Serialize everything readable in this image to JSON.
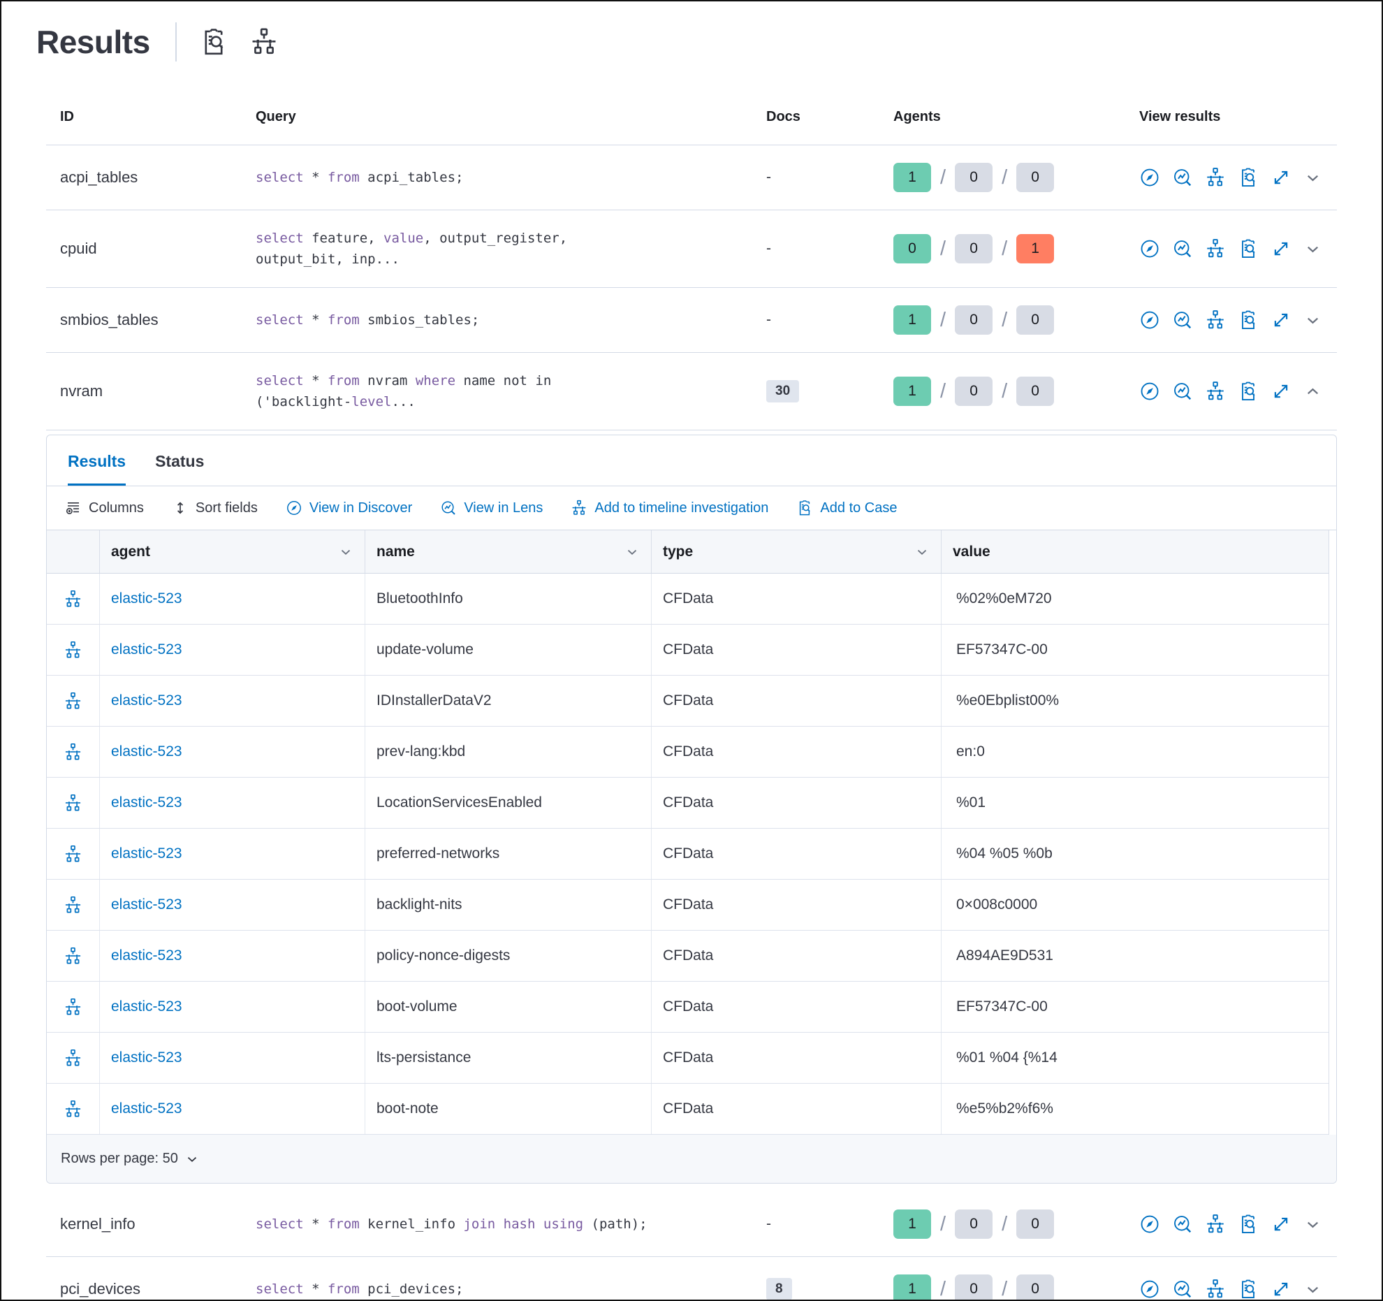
{
  "colors": {
    "primary": "#0071c2",
    "keyword_purple": "#785aa0",
    "success_badge": "#6dccb1",
    "neutral_badge": "#d8dce5",
    "danger_badge": "#ff7e62"
  },
  "header": {
    "title": "Results",
    "actions": [
      {
        "icon": "case"
      },
      {
        "icon": "timeline"
      }
    ]
  },
  "table": {
    "columns": {
      "id": "ID",
      "query": "Query",
      "docs": "Docs",
      "agents": "Agents",
      "view": "View results"
    },
    "view_actions": [
      "discover",
      "lens",
      "timeline",
      "case",
      "expand"
    ],
    "rows": [
      {
        "id": "acpi_tables",
        "docs": "-",
        "agents": {
          "success": 1,
          "pending": 0,
          "failed": 0
        },
        "expanded": false,
        "query": [
          {
            "t": "select",
            "k": true
          },
          {
            "t": " * "
          },
          {
            "t": "from",
            "k": true
          },
          {
            "t": " acpi_tables;"
          }
        ]
      },
      {
        "id": "cpuid",
        "docs": "-",
        "agents": {
          "success": 0,
          "pending": 0,
          "failed": 1
        },
        "expanded": false,
        "query": [
          {
            "t": "select",
            "k": true
          },
          {
            "t": " feature, "
          },
          {
            "t": "value",
            "k": true
          },
          {
            "t": ", output_register,"
          },
          {
            "br": true
          },
          {
            "t": "output_bit, inp..."
          }
        ]
      },
      {
        "id": "smbios_tables",
        "docs": "-",
        "agents": {
          "success": 1,
          "pending": 0,
          "failed": 0
        },
        "expanded": false,
        "query": [
          {
            "t": "select",
            "k": true
          },
          {
            "t": " * "
          },
          {
            "t": "from",
            "k": true
          },
          {
            "t": " smbios_tables;"
          }
        ]
      },
      {
        "id": "nvram",
        "docs_badge": "30",
        "agents": {
          "success": 1,
          "pending": 0,
          "failed": 0
        },
        "expanded": true,
        "query": [
          {
            "t": "select",
            "k": true
          },
          {
            "t": " * "
          },
          {
            "t": "from",
            "k": true
          },
          {
            "t": " nvram "
          },
          {
            "t": "where",
            "k": true
          },
          {
            "t": " name not in"
          },
          {
            "br": true
          },
          {
            "t": "('backlight-"
          },
          {
            "t": "level",
            "k": true
          },
          {
            "t": "..."
          }
        ]
      },
      {
        "id": "kernel_info",
        "docs": "-",
        "agents": {
          "success": 1,
          "pending": 0,
          "failed": 0
        },
        "expanded": false,
        "query": [
          {
            "t": "select",
            "k": true
          },
          {
            "t": " * "
          },
          {
            "t": "from",
            "k": true
          },
          {
            "t": " kernel_info "
          },
          {
            "t": "join",
            "k": true
          },
          {
            "t": " "
          },
          {
            "t": "hash",
            "k": true
          },
          {
            "t": " "
          },
          {
            "t": "using",
            "k": true
          },
          {
            "t": " (path);"
          }
        ]
      },
      {
        "id": "pci_devices",
        "docs_badge": "8",
        "agents": {
          "success": 1,
          "pending": 0,
          "failed": 0
        },
        "expanded": false,
        "query": [
          {
            "t": "select",
            "k": true
          },
          {
            "t": " * "
          },
          {
            "t": "from",
            "k": true
          },
          {
            "t": " pci_devices;"
          }
        ]
      }
    ]
  },
  "panel": {
    "tabs": [
      {
        "label": "Results",
        "active": true
      },
      {
        "label": "Status",
        "active": false
      }
    ],
    "toolbar": [
      {
        "label": "Columns",
        "icon": "columns",
        "style": "plain"
      },
      {
        "label": "Sort fields",
        "icon": "sort",
        "style": "plain"
      },
      {
        "label": "View in Discover",
        "icon": "discover",
        "style": "link"
      },
      {
        "label": "View in Lens",
        "icon": "lens",
        "style": "link"
      },
      {
        "label": "Add to timeline investigation",
        "icon": "timeline",
        "style": "link"
      },
      {
        "label": "Add to Case",
        "icon": "case",
        "style": "link"
      }
    ],
    "grid": {
      "columns": [
        {
          "label": "agent",
          "sortable": true
        },
        {
          "label": "name",
          "sortable": true
        },
        {
          "label": "type",
          "sortable": true
        },
        {
          "label": "value",
          "sortable": false
        }
      ],
      "rows": [
        {
          "agent": "elastic-523",
          "name": "BluetoothInfo",
          "type": "CFData",
          "value": "%02%0eM720"
        },
        {
          "agent": "elastic-523",
          "name": "update-volume",
          "type": "CFData",
          "value": "EF57347C-00"
        },
        {
          "agent": "elastic-523",
          "name": "IDInstallerDataV2",
          "type": "CFData",
          "value": "%e0Ebplist00%"
        },
        {
          "agent": "elastic-523",
          "name": "prev-lang:kbd",
          "type": "CFData",
          "value": "en:0"
        },
        {
          "agent": "elastic-523",
          "name": "LocationServicesEnabled",
          "type": "CFData",
          "value": "%01"
        },
        {
          "agent": "elastic-523",
          "name": "preferred-networks",
          "type": "CFData",
          "value": "%04 %05 %0b"
        },
        {
          "agent": "elastic-523",
          "name": "backlight-nits",
          "type": "CFData",
          "value": "0×008c0000"
        },
        {
          "agent": "elastic-523",
          "name": "policy-nonce-digests",
          "type": "CFData",
          "value": "A894AE9D531"
        },
        {
          "agent": "elastic-523",
          "name": "boot-volume",
          "type": "CFData",
          "value": "EF57347C-00"
        },
        {
          "agent": "elastic-523",
          "name": "lts-persistance",
          "type": "CFData",
          "value": "%01 %04 {%14"
        },
        {
          "agent": "elastic-523",
          "name": "boot-note",
          "type": "CFData",
          "value": "%e5%b2%f6%"
        }
      ]
    },
    "footer": {
      "rows_per_page": "Rows per page: 50"
    }
  }
}
